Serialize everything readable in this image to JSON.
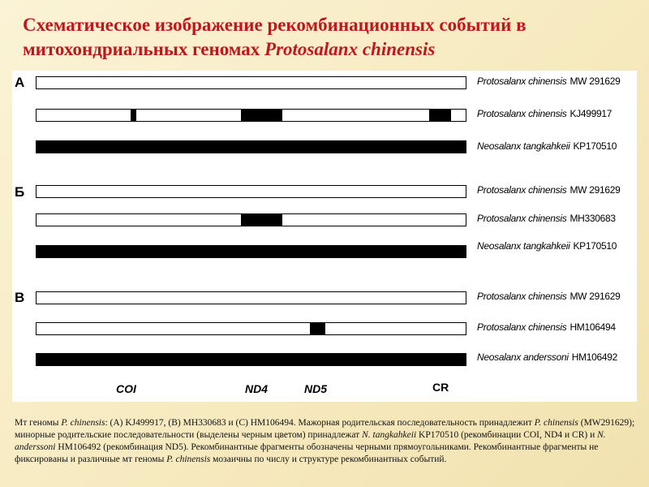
{
  "title": {
    "text": "Схематическое изображение рекомбинационных событий в митохондриальных геномах ",
    "species": "Protosalanx chinensis"
  },
  "panels": [
    {
      "label": "А",
      "rows": [
        {
          "name": "Protosalanx chinensis",
          "accession": "MW 291629"
        },
        {
          "name": "Protosalanx chinensis",
          "accession": "KJ499917"
        },
        {
          "name": "Neosalanx tangkahkeii",
          "accession": "KP170510"
        }
      ]
    },
    {
      "label": "Б",
      "rows": [
        {
          "name": "Protosalanx chinensis",
          "accession": "MW 291629"
        },
        {
          "name": "Protosalanx chinensis",
          "accession": "MH330683"
        },
        {
          "name": "Neosalanx tangkahkeii",
          "accession": "KP170510"
        }
      ]
    },
    {
      "label": "В",
      "rows": [
        {
          "name": "Protosalanx chinensis",
          "accession": "MW 291629"
        },
        {
          "name": "Protosalanx chinensis",
          "accession": "HM106494"
        },
        {
          "name": "Neosalanx anderssoni",
          "accession": "HM106492"
        }
      ]
    }
  ],
  "genes": [
    "COI",
    "ND4",
    "ND5",
    "CR"
  ],
  "caption": [
    "Мт геномы ",
    "P. chinensis",
    ": (A) KJ499917, (B) MH330683 и (C) HM106494. Мажорная родительская последовательность принадлежит ",
    "P. chinensis",
    " (MW291629); минорные родительские последовательности (выделены черным цветом) принадлежат ",
    "N. tangkahkeii",
    " KP170510 (рекомбинации COI, ND4 и CR) и ",
    "N. anderssoni",
    " HM106492 (рекомбинация ND5). Рекомбинантные фрагменты  обозначены черными прямоугольниками. Рекомбинантные фрагменты не фиксированы и различные мт геномы ",
    "P. chinensis",
    " мозаичны по числу и структуре рекомбинантных событий."
  ]
}
